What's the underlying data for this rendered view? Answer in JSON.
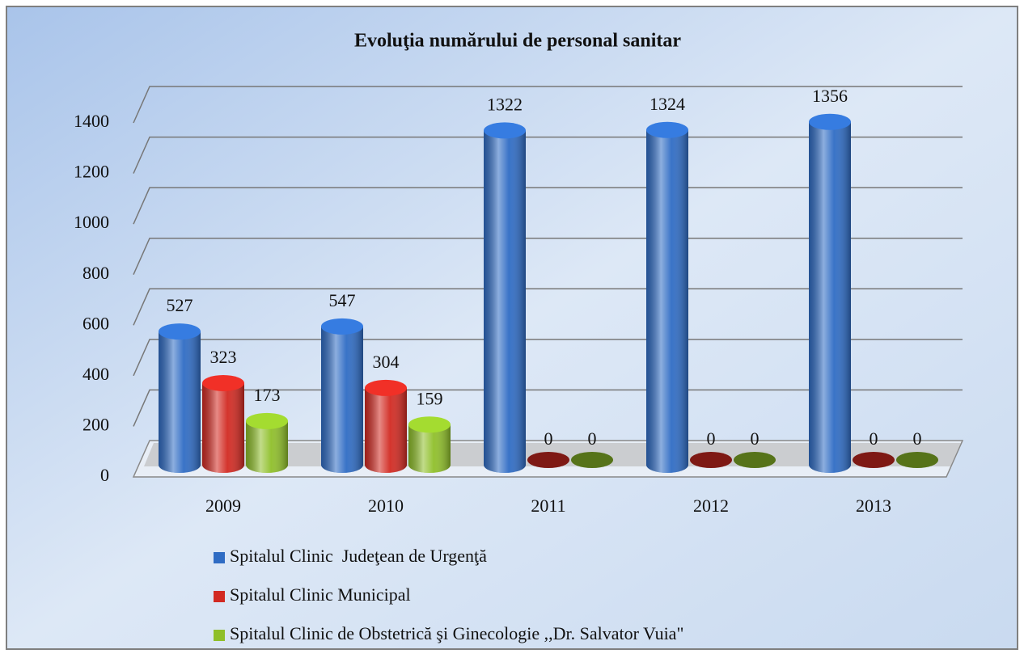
{
  "chart_data": {
    "type": "bar",
    "title": "Evoluţia numărului de personal sanitar",
    "categories": [
      "2009",
      "2010",
      "2011",
      "2012",
      "2013"
    ],
    "series": [
      {
        "name": "Spitalul Clinic  Judeţean de Urgenţă",
        "color": "#2f6cc4",
        "values": [
          527,
          547,
          1322,
          1324,
          1356
        ]
      },
      {
        "name": "Spitalul Clinic Municipal",
        "color": "#d22a22",
        "values": [
          323,
          304,
          0,
          0,
          0
        ]
      },
      {
        "name": "Spitalul Clinic de Obstetrică şi Ginecologie ,,Dr. Salvator Vuia\"",
        "color": "#8fbf2a",
        "values": [
          173,
          159,
          0,
          0,
          0
        ]
      }
    ],
    "ylim": [
      0,
      1400
    ],
    "yticks": [
      0,
      200,
      400,
      600,
      800,
      1000,
      1200,
      1400
    ],
    "grid": true,
    "legend": "bottom"
  }
}
